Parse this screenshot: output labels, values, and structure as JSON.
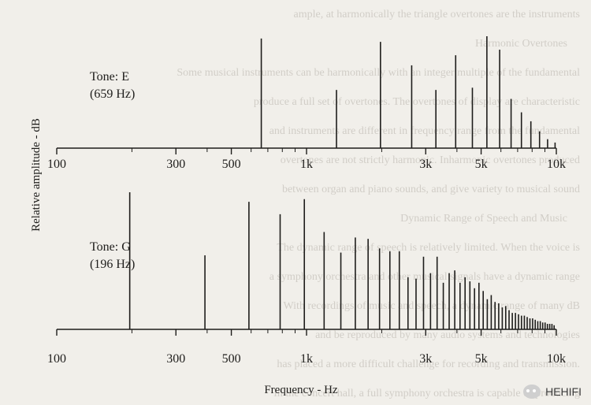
{
  "chart_data": [
    {
      "type": "bar",
      "label_lines": [
        "Tone: E",
        "(659 Hz)"
      ],
      "x_scale": "log",
      "xlim": [
        100,
        10000
      ],
      "ylim": [
        0,
        1
      ],
      "grid": false,
      "x_tick_labels": [
        "100",
        "300",
        "500",
        "1k",
        "3k",
        "5k",
        "10k"
      ],
      "x_tick_values": [
        100,
        300,
        500,
        1000,
        3000,
        5000,
        10000
      ],
      "x_minor_ticks": [
        200,
        400,
        600,
        700,
        800,
        900,
        2000,
        4000,
        6000,
        7000,
        8000,
        9000
      ],
      "x": [
        659,
        1318,
        1977,
        2636,
        3295,
        3954,
        4613,
        5272,
        5931,
        6590,
        7249,
        7908,
        8567,
        9226,
        9885
      ],
      "values": [
        0.98,
        0.52,
        0.95,
        0.74,
        0.52,
        0.83,
        0.54,
        1.0,
        0.88,
        0.44,
        0.32,
        0.24,
        0.15,
        0.08,
        0.05
      ]
    },
    {
      "type": "bar",
      "label_lines": [
        "Tone: G",
        "(196 Hz)"
      ],
      "x_scale": "log",
      "xlim": [
        100,
        10000
      ],
      "ylim": [
        0,
        1
      ],
      "grid": false,
      "x_tick_labels": [
        "100",
        "300",
        "500",
        "1k",
        "3k",
        "5k",
        "10k"
      ],
      "x_tick_values": [
        100,
        300,
        500,
        1000,
        3000,
        5000,
        10000
      ],
      "x_minor_ticks": [
        200,
        400,
        600,
        700,
        800,
        900,
        2000,
        4000,
        6000,
        7000,
        8000,
        9000
      ],
      "x": [
        196,
        392,
        588,
        784,
        980,
        1176,
        1372,
        1568,
        1764,
        1960,
        2156,
        2352,
        2548,
        2744,
        2940,
        3136,
        3332,
        3528,
        3724,
        3920,
        4116,
        4312,
        4508,
        4704,
        4900,
        5096,
        5292,
        5488,
        5684,
        5880,
        6076,
        6272,
        6468,
        6664,
        6860,
        7056,
        7252,
        7448,
        7644,
        7840,
        8036,
        8232,
        8428,
        8624,
        8820,
        9016,
        9212,
        9408,
        9604,
        9800
      ],
      "values": [
        1.0,
        0.54,
        0.93,
        0.84,
        0.95,
        0.71,
        0.56,
        0.67,
        0.66,
        0.59,
        0.57,
        0.57,
        0.38,
        0.37,
        0.53,
        0.41,
        0.53,
        0.34,
        0.41,
        0.43,
        0.34,
        0.38,
        0.35,
        0.3,
        0.34,
        0.28,
        0.22,
        0.25,
        0.2,
        0.19,
        0.16,
        0.17,
        0.14,
        0.12,
        0.12,
        0.11,
        0.1,
        0.1,
        0.09,
        0.08,
        0.08,
        0.07,
        0.06,
        0.06,
        0.05,
        0.05,
        0.04,
        0.04,
        0.04,
        0.03
      ]
    }
  ],
  "ylabel": "Relative amplitude - dB",
  "xlabel": "Frequency - Hz",
  "watermark": "HEHIFI",
  "background_text": [
    "ample, at harmonically the triangle overtones are the instruments",
    "Harmonic Overtones",
    "Some musical instruments can be harmonically with an integer multiple of the fundamental",
    "produce a full set of overtones. The overtones of display are characteristic",
    "and instruments are different in frequency range from the fundamental",
    "overtones are not strictly harmonic. Inharmonic overtones produced",
    "between organ and piano sounds, and give variety to musical sound",
    "Dynamic Range of Speech and Music",
    "The dynamic range of speech is relatively limited. When the voice is",
    "a symphony orchestra and other musical signals have a dynamic range",
    "With recordings of music and speech, a dynamic range of many dB",
    "and be reproduced by many audio systems and technologies",
    "has placed a more difficult challenge for recording and transmission.",
    "In the concert hall, a full symphony orchestra is capable of producing"
  ],
  "colors": {
    "ink": "#1e1d1b",
    "paper": "#f1efea"
  }
}
